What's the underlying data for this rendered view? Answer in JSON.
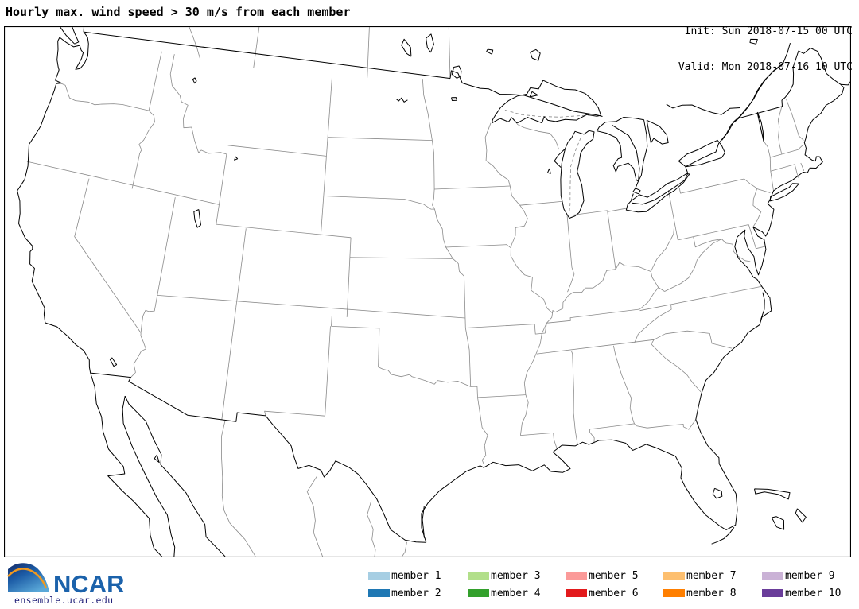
{
  "header": {
    "title": "Hourly max. wind speed > 30 m/s from each member",
    "init": "Init: Sun 2018-07-15 00 UTC",
    "valid": "Valid: Mon 2018-07-16 10 UTC"
  },
  "legend": {
    "members": [
      {
        "label": "member 1",
        "color": "#A6CEE3"
      },
      {
        "label": "member 2",
        "color": "#1F78B4"
      },
      {
        "label": "member 3",
        "color": "#B2DF8A"
      },
      {
        "label": "member 4",
        "color": "#33A02C"
      },
      {
        "label": "member 5",
        "color": "#FB9A99"
      },
      {
        "label": "member 6",
        "color": "#E31A1C"
      },
      {
        "label": "member 7",
        "color": "#FDBF6F"
      },
      {
        "label": "member 8",
        "color": "#FF7F00"
      },
      {
        "label": "member 9",
        "color": "#CAB2D6"
      },
      {
        "label": "member 10",
        "color": "#6A3D9A"
      }
    ]
  },
  "footer": {
    "logo_text": "NCAR",
    "source": "ensemble.ucar.edu"
  },
  "colors": {
    "coast_line": "#000000",
    "state_line": "#8a8a8a",
    "frame": "#000000",
    "logo_blue": "#1B62AB",
    "logo_orange": "#F0991F",
    "logo_grad_top": "#152a66",
    "logo_grad_mid": "#1c5ca6",
    "logo_grad_bot": "#5aa8d8",
    "source_text": "#22227A"
  }
}
